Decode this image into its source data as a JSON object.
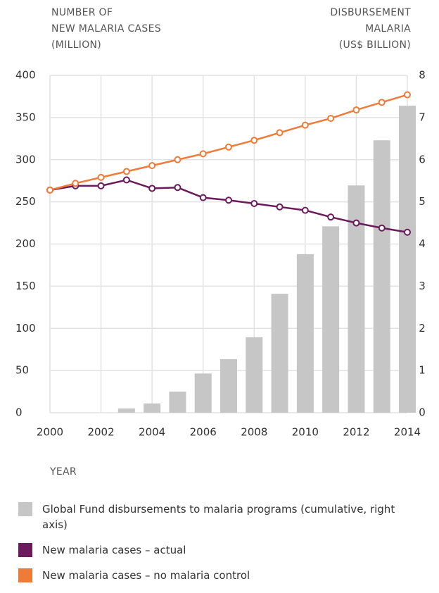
{
  "chart_data": {
    "type": "bar-line",
    "ylabel": [
      "NUMBER OF",
      "NEW MALARIA CASES",
      "(MILLION)"
    ],
    "y2label": [
      "DISBURSEMENT",
      "MALARIA",
      "(US$ BILLION)"
    ],
    "xlabel": "YEAR",
    "x": [
      2000,
      2001,
      2002,
      2003,
      2004,
      2005,
      2006,
      2007,
      2008,
      2009,
      2010,
      2011,
      2012,
      2013,
      2014
    ],
    "xlim": [
      2000,
      2014
    ],
    "xticks": [
      2000,
      2002,
      2004,
      2006,
      2008,
      2010,
      2012,
      2014
    ],
    "ylim": [
      0,
      400
    ],
    "yticks": [
      0,
      50,
      100,
      150,
      200,
      250,
      300,
      350,
      400
    ],
    "y2lim": [
      0,
      8
    ],
    "y2ticks": [
      0,
      1,
      2,
      3,
      4,
      5,
      6,
      7,
      8
    ],
    "grid": true,
    "legend": "bottom",
    "series": [
      {
        "name": "Global Fund disbursements to malaria programs (cumulative, right axis)",
        "type": "bar",
        "axis": "y2",
        "color": "#c6c6c6",
        "values": [
          0,
          0,
          0,
          0.1,
          0.22,
          0.5,
          0.93,
          1.27,
          1.79,
          2.82,
          3.76,
          4.42,
          5.39,
          6.46,
          7.28
        ]
      },
      {
        "name": "New malaria cases – actual",
        "type": "line",
        "color": "#6b1a5e",
        "values": [
          264,
          269,
          269,
          276,
          266,
          267,
          255,
          252,
          248,
          244,
          240,
          232,
          225,
          219,
          214
        ]
      },
      {
        "name": "New malaria cases – no malaria control",
        "type": "line",
        "color": "#ef7b38",
        "values": [
          264,
          272,
          279,
          286,
          293,
          300,
          307,
          315,
          323,
          332,
          341,
          349,
          359,
          368,
          377
        ]
      }
    ]
  }
}
